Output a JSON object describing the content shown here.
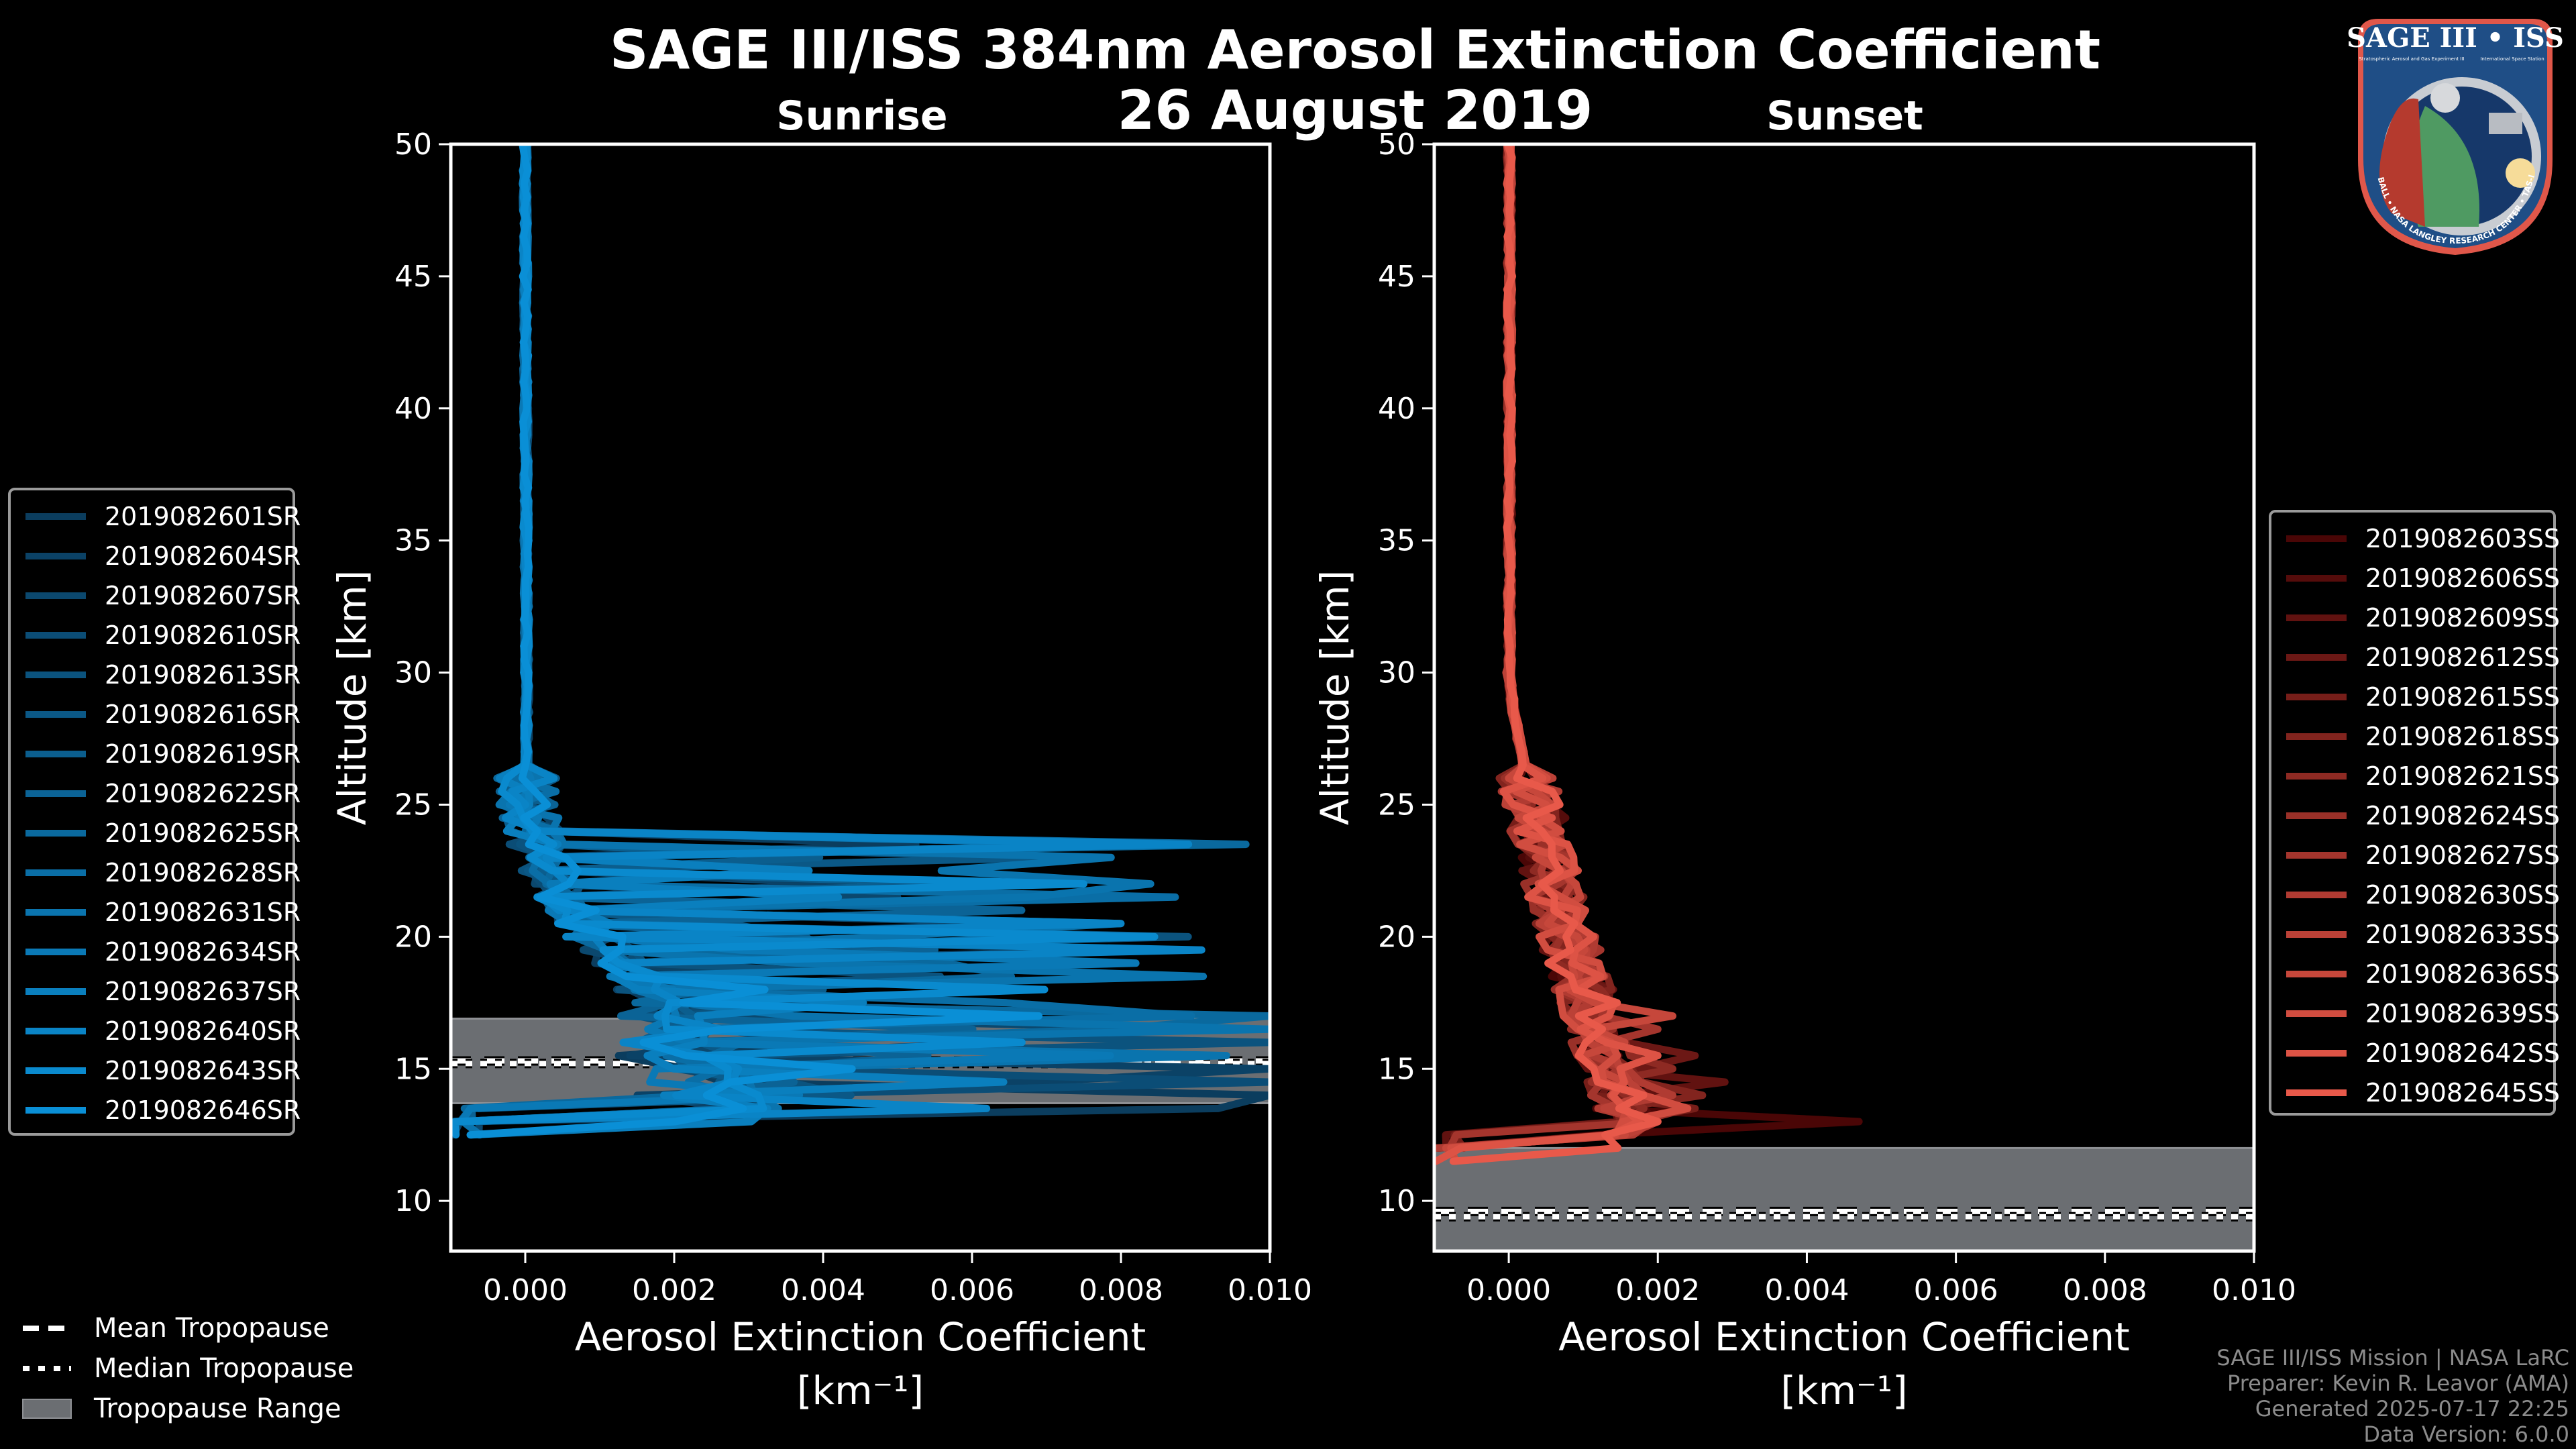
{
  "header": {
    "title": "SAGE III/ISS 384nm Aerosol Extinction Coefficient",
    "date": "26 August 2019"
  },
  "logo": {
    "title": "SAGE III • ISS",
    "subtitle_left": "Stratospheric Aerosol and Gas Experiment III",
    "subtitle_right": "International Space Station",
    "ring_text": "BALL • NASA LANGLEY RESEARCH CENTER • TAS-I • ESA"
  },
  "tropopause_legend": {
    "mean": "Mean Tropopause",
    "median": "Median Tropopause",
    "range": "Tropopause Range"
  },
  "credits": {
    "line1": "SAGE III/ISS Mission | NASA LaRC",
    "line2": "Preparer: Kevin R. Leavor (AMA)",
    "line3": "Generated 2025-07-17 22:25",
    "line4": "Data Version: 6.0.0"
  },
  "colors": {
    "background": "#000000",
    "sunrise_accent": "#0a88c8",
    "sunset_accent": "#e8594a",
    "tropopause_range": "#6b6e72",
    "axis": "#ffffff"
  },
  "chart_data": [
    {
      "type": "line",
      "title": "Sunrise",
      "xlabel": "Aerosol Extinction Coefficient",
      "xlabel_units": "[km⁻¹]",
      "ylabel": "Altitude [km]",
      "xlim": [
        -0.001,
        0.01
      ],
      "ylim": [
        8.1,
        50
      ],
      "xticks": [
        "0.000",
        "0.002",
        "0.004",
        "0.006",
        "0.008",
        "0.010"
      ],
      "xtick_values": [
        0.0,
        0.002,
        0.004,
        0.006,
        0.008,
        0.01
      ],
      "yticks": [
        "10",
        "15",
        "20",
        "25",
        "30",
        "35",
        "40",
        "45",
        "50"
      ],
      "ytick_values": [
        10,
        15,
        20,
        25,
        30,
        35,
        40,
        45,
        50
      ],
      "grid": false,
      "legend_position": "left",
      "tropopause": {
        "mean": 15.3,
        "median": 15.2,
        "range": [
          13.7,
          16.9
        ]
      },
      "color_range": [
        "#0b3d5e",
        "#0a8fd6"
      ],
      "series": [
        {
          "name": "2019082601SR",
          "peak_alt": 14.2,
          "peak_x": 0.01,
          "low_alt": 12.6
        },
        {
          "name": "2019082604SR",
          "peak_alt": 14.8,
          "peak_x": 0.01,
          "low_alt": 12.4
        },
        {
          "name": "2019082607SR",
          "peak_alt": 21.5,
          "peak_x": 0.005,
          "low_alt": 12.5
        },
        {
          "name": "2019082610SR",
          "peak_alt": 14.5,
          "peak_x": 0.01,
          "low_alt": 12.8
        },
        {
          "name": "2019082613SR",
          "peak_alt": 15.9,
          "peak_x": 0.01,
          "low_alt": 13.0
        },
        {
          "name": "2019082616SR",
          "peak_alt": 20.3,
          "peak_x": 0.006,
          "low_alt": 13.2
        },
        {
          "name": "2019082619SR",
          "peak_alt": 18.0,
          "peak_x": 0.004,
          "low_alt": 12.6
        },
        {
          "name": "2019082622SR",
          "peak_alt": 19.3,
          "peak_x": 0.0055,
          "low_alt": 12.9
        },
        {
          "name": "2019082625SR",
          "peak_alt": 17.2,
          "peak_x": 0.01,
          "low_alt": 13.1
        },
        {
          "name": "2019082628SR",
          "peak_alt": 20.0,
          "peak_x": 0.0078,
          "low_alt": 12.7
        },
        {
          "name": "2019082631SR",
          "peak_alt": 16.3,
          "peak_x": 0.01,
          "low_alt": 12.5
        },
        {
          "name": "2019082634SR",
          "peak_alt": 19.0,
          "peak_x": 0.0082,
          "low_alt": 13.0
        },
        {
          "name": "2019082637SR",
          "peak_alt": 17.7,
          "peak_x": 0.0088,
          "low_alt": 12.3
        },
        {
          "name": "2019082640SR",
          "peak_alt": 20.6,
          "peak_x": 0.008,
          "low_alt": 12.6
        },
        {
          "name": "2019082643SR",
          "peak_alt": 22.0,
          "peak_x": 0.0075,
          "low_alt": 12.4
        },
        {
          "name": "2019082646SR",
          "peak_alt": 15.5,
          "peak_x": 0.01,
          "low_alt": 12.2
        }
      ]
    },
    {
      "type": "line",
      "title": "Sunset",
      "xlabel": "Aerosol Extinction Coefficient",
      "xlabel_units": "[km⁻¹]",
      "ylabel": "Altitude [km]",
      "xlim": [
        -0.001,
        0.01
      ],
      "ylim": [
        8.1,
        50
      ],
      "xticks": [
        "0.000",
        "0.002",
        "0.004",
        "0.006",
        "0.008",
        "0.010"
      ],
      "xtick_values": [
        0.0,
        0.002,
        0.004,
        0.006,
        0.008,
        0.01
      ],
      "yticks": [
        "10",
        "15",
        "20",
        "25",
        "30",
        "35",
        "40",
        "45",
        "50"
      ],
      "ytick_values": [
        10,
        15,
        20,
        25,
        30,
        35,
        40,
        45,
        50
      ],
      "grid": false,
      "legend_position": "right",
      "tropopause": {
        "mean": 9.6,
        "median": 9.4,
        "range": [
          8.1,
          12.0
        ]
      },
      "color_range": [
        "#4a0606",
        "#e8594a"
      ],
      "series": [
        {
          "name": "2019082603SS",
          "peak_alt": 13.0,
          "peak_x": 0.0047,
          "low_alt": 11.8
        },
        {
          "name": "2019082606SS",
          "peak_alt": 12.2,
          "peak_x": 0.0028,
          "low_alt": 11.7
        },
        {
          "name": "2019082609SS",
          "peak_alt": 14.6,
          "peak_x": 0.0029,
          "low_alt": 11.9
        },
        {
          "name": "2019082612SS",
          "peak_alt": 15.6,
          "peak_x": 0.0025,
          "low_alt": 11.8
        },
        {
          "name": "2019082615SS",
          "peak_alt": 13.5,
          "peak_x": 0.0025,
          "low_alt": 11.9
        },
        {
          "name": "2019082618SS",
          "peak_alt": 14.2,
          "peak_x": 0.0026,
          "low_alt": 11.7
        },
        {
          "name": "2019082621SS",
          "peak_alt": 15.0,
          "peak_x": 0.0022,
          "low_alt": 11.8
        },
        {
          "name": "2019082624SS",
          "peak_alt": 13.3,
          "peak_x": 0.0024,
          "low_alt": 11.6
        },
        {
          "name": "2019082627SS",
          "peak_alt": 16.5,
          "peak_x": 0.002,
          "low_alt": 11.9
        },
        {
          "name": "2019082630SS",
          "peak_alt": 14.0,
          "peak_x": 0.0022,
          "low_alt": 11.7
        },
        {
          "name": "2019082633SS",
          "peak_alt": 12.8,
          "peak_x": 0.002,
          "low_alt": 11.8
        },
        {
          "name": "2019082636SS",
          "peak_alt": 17.2,
          "peak_x": 0.0022,
          "low_alt": 11.6
        },
        {
          "name": "2019082639SS",
          "peak_alt": 13.7,
          "peak_x": 0.0024,
          "low_alt": 11.4
        },
        {
          "name": "2019082642SS",
          "peak_alt": 15.3,
          "peak_x": 0.002,
          "low_alt": 11.5
        },
        {
          "name": "2019082645SS",
          "peak_alt": 12.9,
          "peak_x": 0.002,
          "low_alt": 11.2
        }
      ]
    }
  ]
}
